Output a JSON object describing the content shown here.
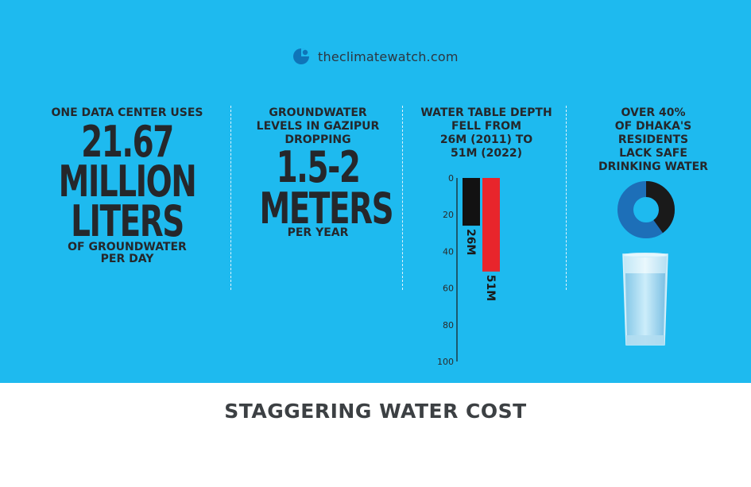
{
  "logo": {
    "icon": "globe-icon",
    "text": "theclimatewatch.com"
  },
  "stat1": {
    "heading": "ONE DATA CENTER USES",
    "number": "21.67",
    "line1": "MILLION",
    "line2": "LITERS",
    "sub1": "OF GROUNDWATER",
    "sub2": "PER DAY"
  },
  "stat2": {
    "heading1": "GROUNDWATER",
    "heading2": "LEVELS IN GAZIPUR",
    "heading3": "DROPPING",
    "number": "1.5-2",
    "unit": "METERS",
    "sub": "PER YEAR"
  },
  "stat3": {
    "heading1": "WATER TABLE DEPTH",
    "heading2": "FELL FROM",
    "heading3": "26M (2011) TO",
    "heading4": "51M (2022)"
  },
  "stat4": {
    "heading1": "OVER 40%",
    "heading2": "OF DHAKA'S",
    "heading3": "RESIDENTS",
    "heading4": "LACK SAFE",
    "heading5": "DRINKING WATER",
    "donut_icon": "donut-chart-icon",
    "glass_icon": "water-glass-icon",
    "percent_value": 40,
    "colors": {
      "dark": "#1a1a1a",
      "blue": "#1d6fb8",
      "ring_light": "#2b8fd6"
    }
  },
  "chart_data": {
    "type": "bar",
    "categories": [
      "2011",
      "2022"
    ],
    "values": [
      26,
      51
    ],
    "data_labels": [
      "26M",
      "51M"
    ],
    "ylim": [
      0,
      100
    ],
    "yticks": [
      "0",
      "20",
      "40",
      "60",
      "80",
      "100"
    ],
    "inverted_axis": true,
    "colors": [
      "#121212",
      "#e8252b"
    ]
  },
  "footer": {
    "title": "STAGGERING WATER COST"
  },
  "colors": {
    "panel": "#1ebaef",
    "text": "#25272b",
    "footer_text": "#3c4043"
  }
}
